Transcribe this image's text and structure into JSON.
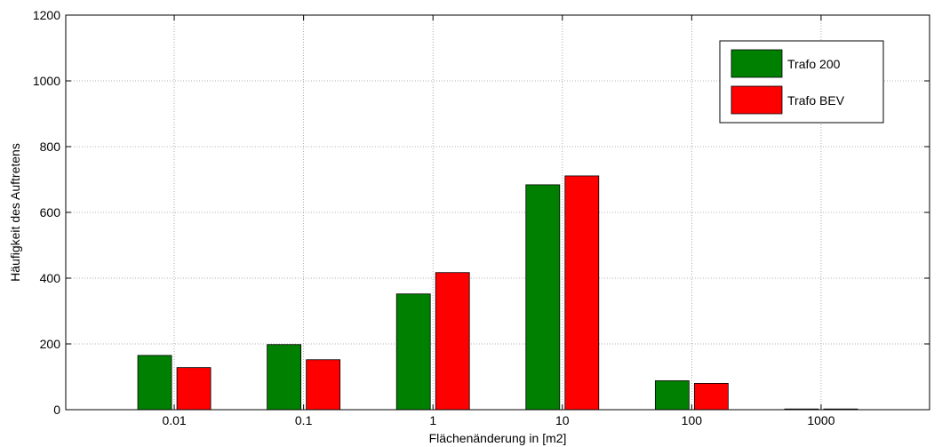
{
  "chart_data": {
    "type": "bar",
    "title": "",
    "xlabel": "Flächenänderung in [m2]",
    "ylabel": "Häufigkeit des Auftretens",
    "categories": [
      "0.01",
      "0.1",
      "1",
      "10",
      "100",
      "1000"
    ],
    "series": [
      {
        "name": "Trafo 200",
        "color": "#008000",
        "values": [
          165,
          198,
          352,
          684,
          88,
          2
        ]
      },
      {
        "name": "Trafo BEV",
        "color": "#ff0000",
        "values": [
          128,
          152,
          417,
          711,
          80,
          2
        ]
      }
    ],
    "ylim": [
      0,
      1200
    ],
    "yticks": [
      "0",
      "200",
      "400",
      "600",
      "800",
      "1000",
      "1200"
    ],
    "grid": true,
    "grid_style": "dotted",
    "legend_position": "top-right"
  }
}
